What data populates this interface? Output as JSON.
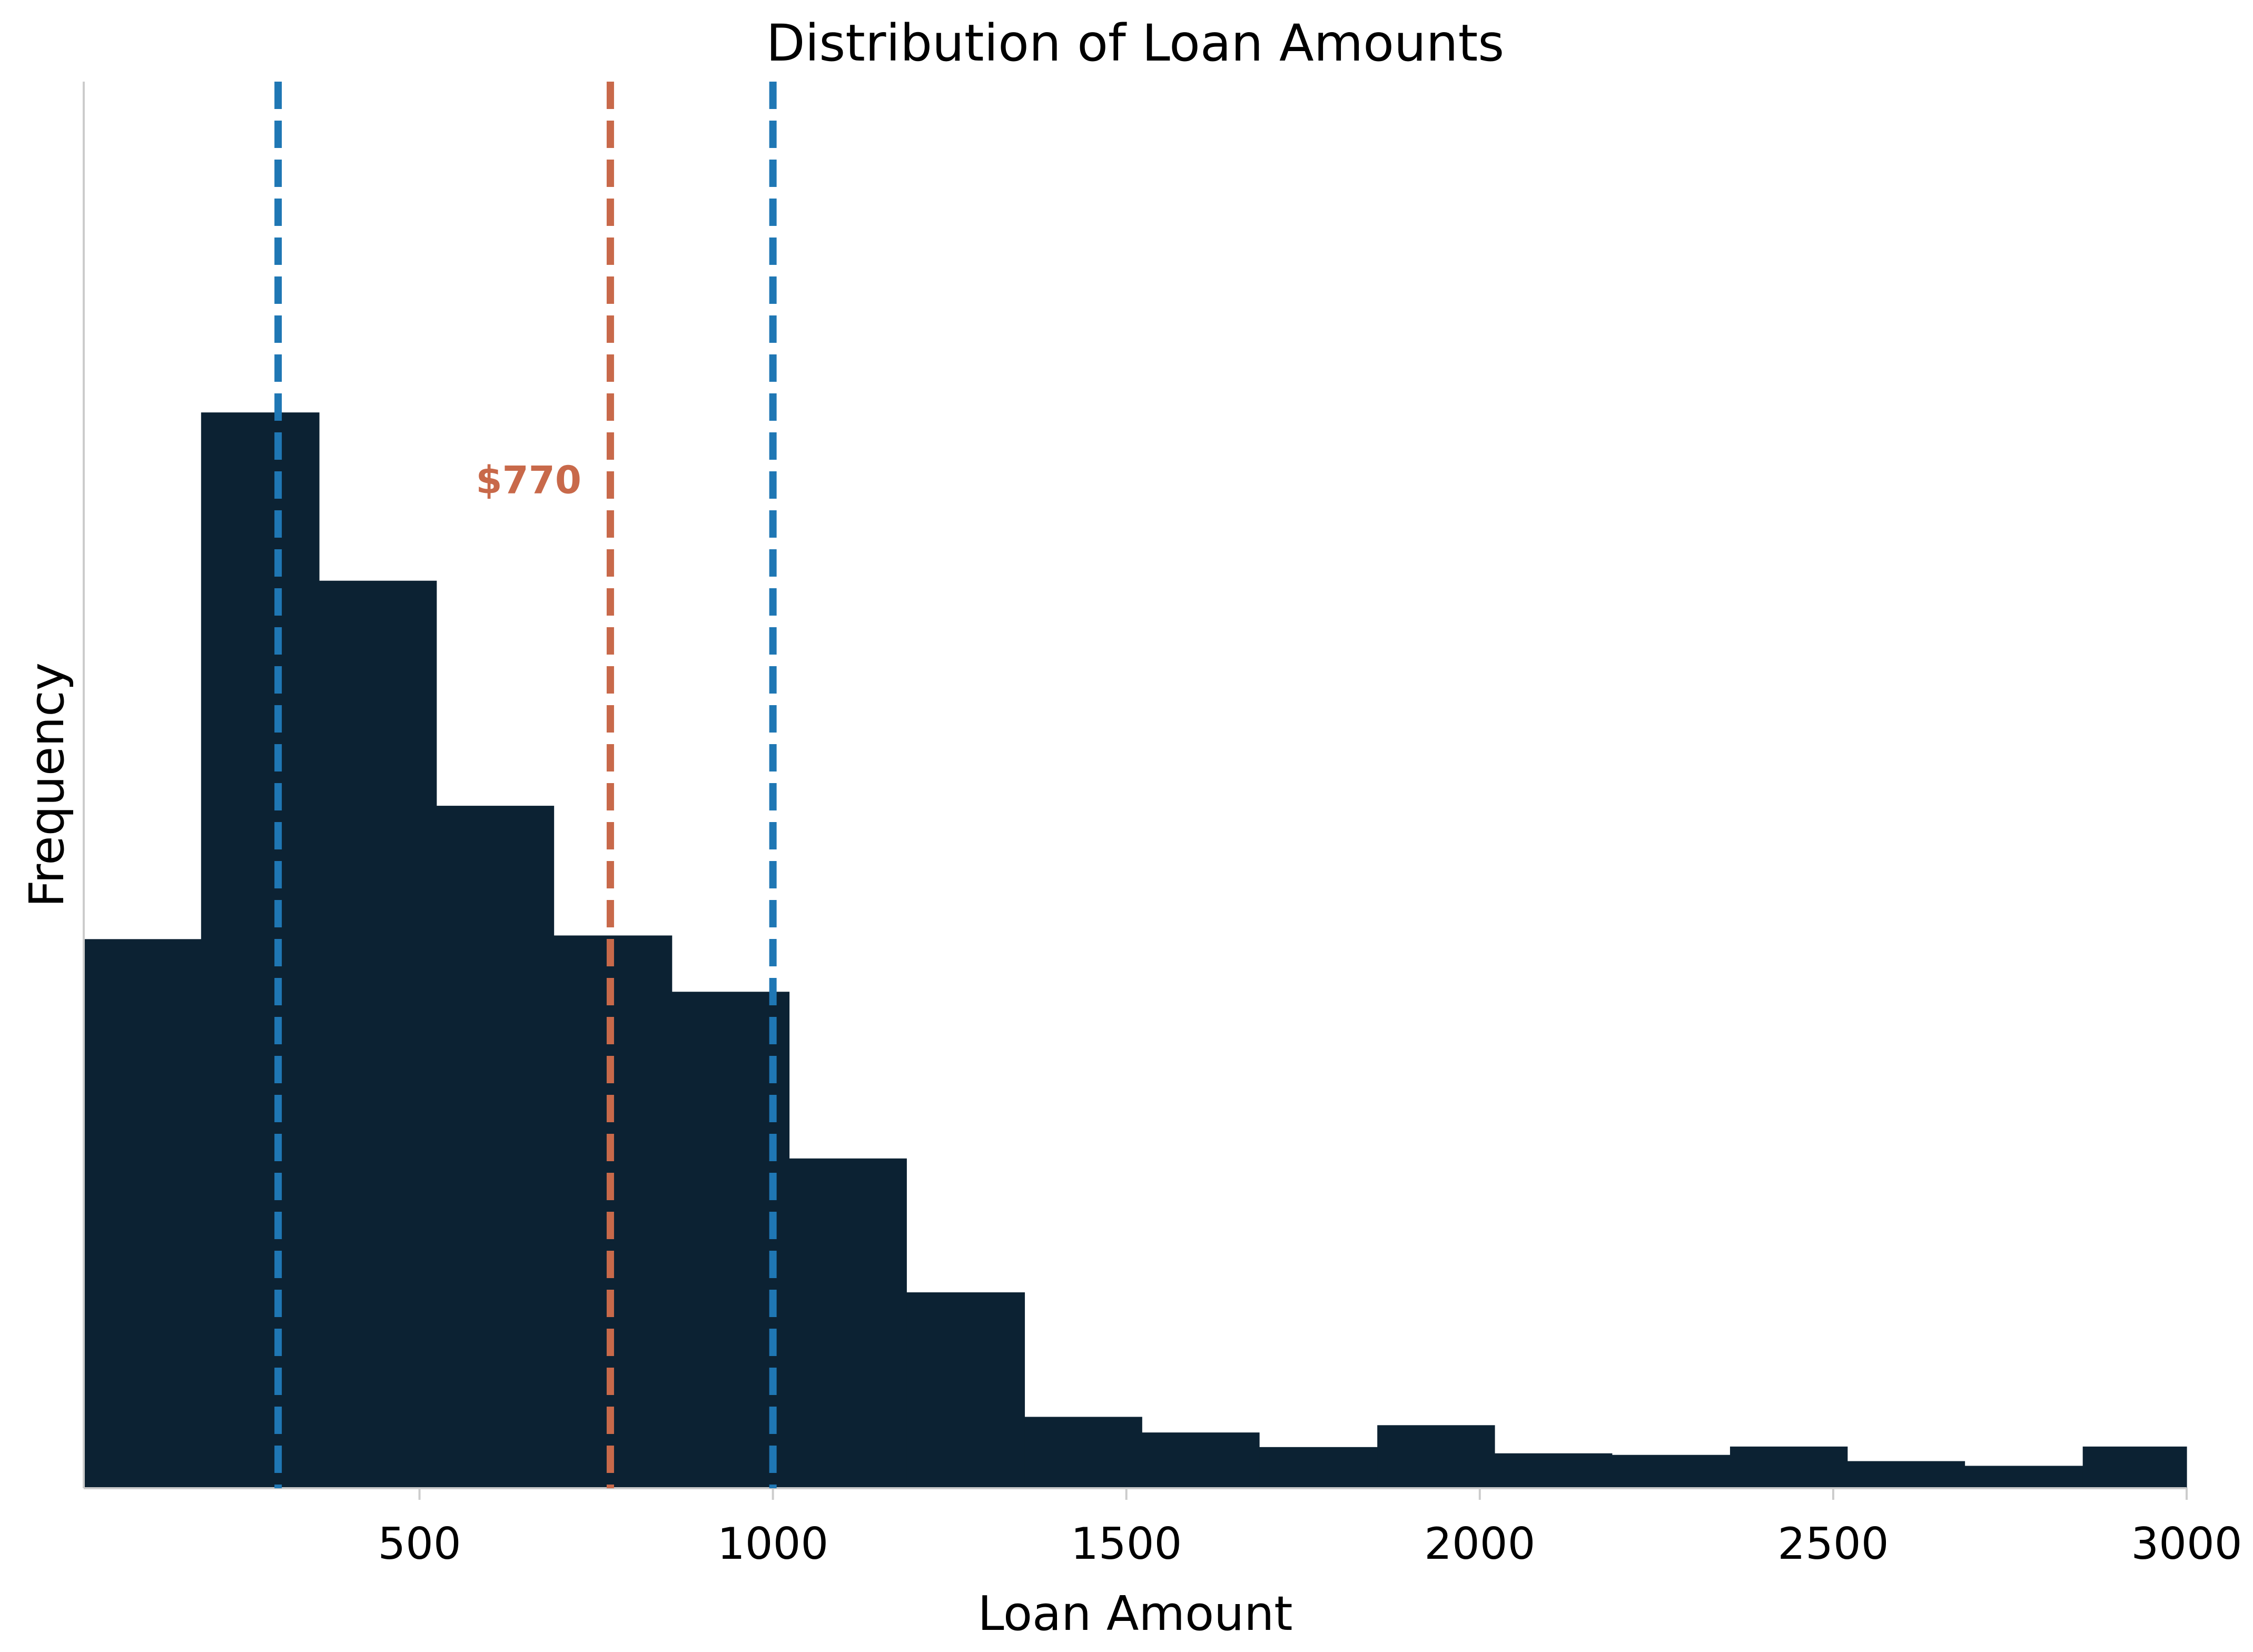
{
  "chart_data": {
    "type": "histogram",
    "title": "Distribution of Loan Amounts",
    "xlabel": "Loan Amount",
    "ylabel": "Frequency",
    "xlim": [
      25,
      3000
    ],
    "ylim": [
      0,
      2.7
    ],
    "xticks": [
      500,
      1000,
      1500,
      2000,
      2500,
      3000
    ],
    "yticks_visible": false,
    "grid": false,
    "bins": [
      {
        "start": 25,
        "end": 191,
        "value": 1.054
      },
      {
        "start": 191,
        "end": 358,
        "value": 2.065
      },
      {
        "start": 358,
        "end": 524,
        "value": 1.742
      },
      {
        "start": 524,
        "end": 690,
        "value": 1.31
      },
      {
        "start": 690,
        "end": 857,
        "value": 1.061
      },
      {
        "start": 857,
        "end": 1023,
        "value": 0.953
      },
      {
        "start": 1023,
        "end": 1189,
        "value": 0.633
      },
      {
        "start": 1189,
        "end": 1356,
        "value": 0.376
      },
      {
        "start": 1356,
        "end": 1522,
        "value": 0.137
      },
      {
        "start": 1522,
        "end": 1688,
        "value": 0.107
      },
      {
        "start": 1688,
        "end": 1855,
        "value": 0.079
      },
      {
        "start": 1855,
        "end": 2021,
        "value": 0.121
      },
      {
        "start": 2021,
        "end": 2187,
        "value": 0.067
      },
      {
        "start": 2187,
        "end": 2354,
        "value": 0.064
      },
      {
        "start": 2354,
        "end": 2520,
        "value": 0.08
      },
      {
        "start": 2520,
        "end": 2686,
        "value": 0.052
      },
      {
        "start": 2686,
        "end": 2853,
        "value": 0.043
      },
      {
        "start": 2853,
        "end": 3000,
        "value": 0.08
      }
    ],
    "reference_lines": [
      {
        "x": 300,
        "color": "#1f77b4"
      },
      {
        "x": 770,
        "color": "#c8694a",
        "label": "$770"
      },
      {
        "x": 1000,
        "color": "#1f77b4"
      }
    ],
    "colors": {
      "bars": "#0c2233",
      "axis": "#cccccc",
      "text": "#000000"
    }
  }
}
